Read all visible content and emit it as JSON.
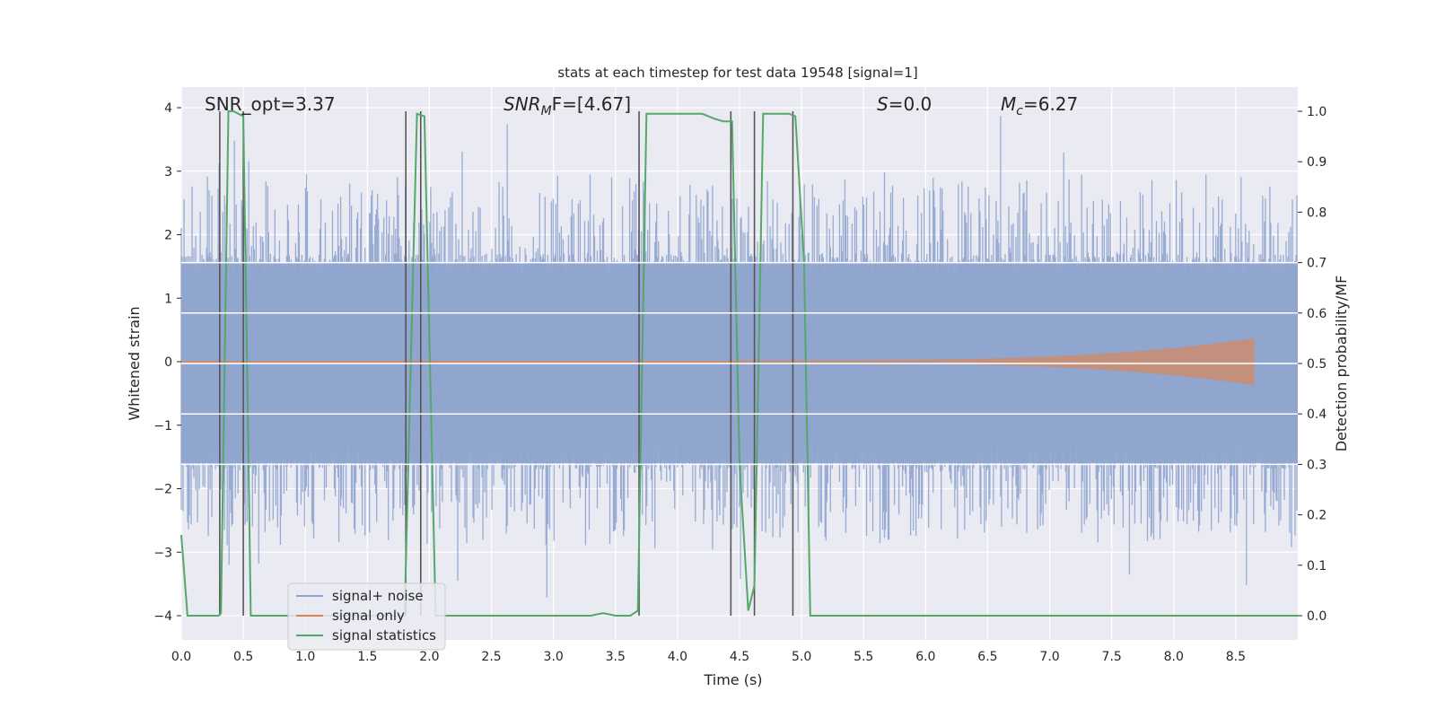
{
  "chart_data": {
    "type": "line",
    "title": "stats at each timestep for test data 19548 [signal=1]",
    "xlabel": "Time (s)",
    "ylabel_left": "Whitened strain",
    "ylabel_right": "Detection probability/MF",
    "xlim": [
      0.0,
      9.0
    ],
    "ylim_left": [
      -4.4,
      4.3
    ],
    "ylim_right": [
      -0.05,
      1.03
    ],
    "x_ticks": [
      "0.0",
      "0.5",
      "1.0",
      "1.5",
      "2.0",
      "2.5",
      "3.0",
      "3.5",
      "4.0",
      "4.5",
      "5.0",
      "5.5",
      "6.0",
      "6.5",
      "7.0",
      "7.5",
      "8.0",
      "8.5"
    ],
    "y_ticks_left": [
      "4",
      "3",
      "2",
      "1",
      "0",
      "−1",
      "−2",
      "−3",
      "−4"
    ],
    "y_ticks_right": [
      "1.0",
      "0.9",
      "0.8",
      "0.7",
      "0.6",
      "0.5",
      "0.4",
      "0.3",
      "0.2",
      "0.1",
      "0.0"
    ],
    "grid": true,
    "legend_position": "lower-left",
    "annotations": {
      "snr_opt": "SNR_opt=3.37",
      "snr_mf_base": "SNR",
      "snr_mf_sub": "M",
      "snr_mf_rest": "F=[4.67]",
      "s_label": "S",
      "s_value": "=0.0",
      "mc_base": "M",
      "mc_sub": "c",
      "mc_value": "=6.27"
    },
    "series": [
      {
        "name": "signal+ noise",
        "color": "#8fa5cf",
        "description_values": "noise, bulk amplitude ±1.6, peaks to ±4"
      },
      {
        "name": "signal only",
        "color": "#dd8452",
        "chirp_start": 4.4,
        "chirp_end": 8.65,
        "max_amplitude": 0.35
      },
      {
        "name": "signal statistics",
        "color": "#55a868",
        "x": [
          0.0,
          0.05,
          0.1,
          0.2,
          0.3,
          0.32,
          0.38,
          0.42,
          0.5,
          0.53,
          0.56,
          0.6,
          0.7,
          1.0,
          1.5,
          1.8,
          1.85,
          1.9,
          1.96,
          2.0,
          2.05,
          2.1,
          2.5,
          3.0,
          3.3,
          3.4,
          3.5,
          3.62,
          3.68,
          3.75,
          3.8,
          4.0,
          4.2,
          4.3,
          4.37,
          4.44,
          4.5,
          4.57,
          4.62,
          4.69,
          4.75,
          4.8,
          4.9,
          4.95,
          5.02,
          5.07,
          5.1,
          6.0,
          7.0,
          8.0,
          9.0
        ],
        "y": [
          0.16,
          0.0,
          0.0,
          0.0,
          0.0,
          0.005,
          1.0,
          1.0,
          0.99,
          0.5,
          0.0,
          0.0,
          0.0,
          0.0,
          0.0,
          0.0,
          0.5,
          0.995,
          0.99,
          0.55,
          0.0,
          0.0,
          0.0,
          0.0,
          0.0,
          0.005,
          0.0,
          0.0,
          0.01,
          0.995,
          0.995,
          0.995,
          0.995,
          0.985,
          0.98,
          0.98,
          0.3,
          0.01,
          0.06,
          0.995,
          0.995,
          0.995,
          0.995,
          0.99,
          0.7,
          0.0,
          0.0,
          0.0,
          0.0,
          0.0,
          0.0
        ]
      }
    ],
    "vertical_markers": [
      0.31,
      0.5,
      1.81,
      1.93,
      3.69,
      4.43,
      4.62,
      4.93
    ]
  },
  "colors": {
    "background": "#eaeaf2",
    "grid": "#ffffff",
    "noise": "#8fa5cf",
    "signal": "#dd8452",
    "stats": "#55a868",
    "marker": "#555555"
  }
}
